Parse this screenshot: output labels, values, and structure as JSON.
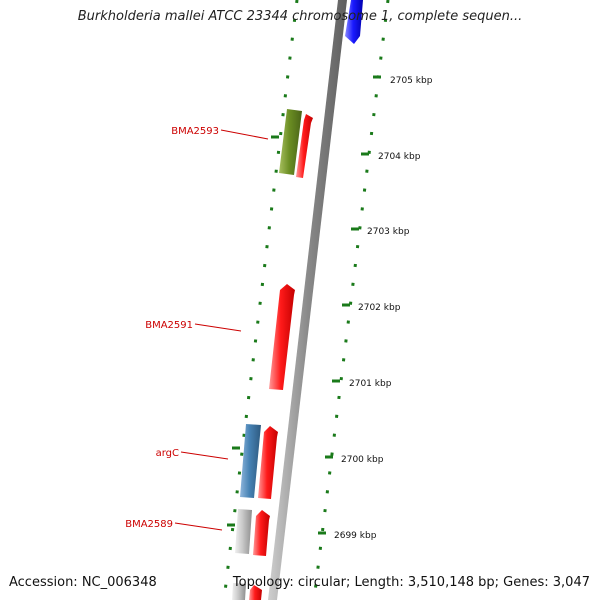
{
  "title": "Burkholderia mallei ATCC 23344 chromosome 1, complete sequen...",
  "footer": {
    "accession": "Accession: NC_006348",
    "summary": "Topology: circular; Length: 3,510,148 bp; Genes: 3,047"
  },
  "ticks": [
    "2705 kbp",
    "2704 kbp",
    "2703 kbp",
    "2702 kbp",
    "2701 kbp",
    "2700 kbp",
    "2699 kbp"
  ],
  "gene_labels": [
    "BMA2593",
    "BMA2591",
    "argC",
    "BMA2589"
  ],
  "colors": {
    "label_red": "#cc0000",
    "tick_green": "#1a7a1a",
    "gene_red": "#ee1111",
    "gene_blue": "#1111ee",
    "gene_olive": "#6b8e23",
    "gene_steelblue": "#4682b4",
    "gene_grey": "#bdbdbd",
    "backbone": "#888888"
  }
}
